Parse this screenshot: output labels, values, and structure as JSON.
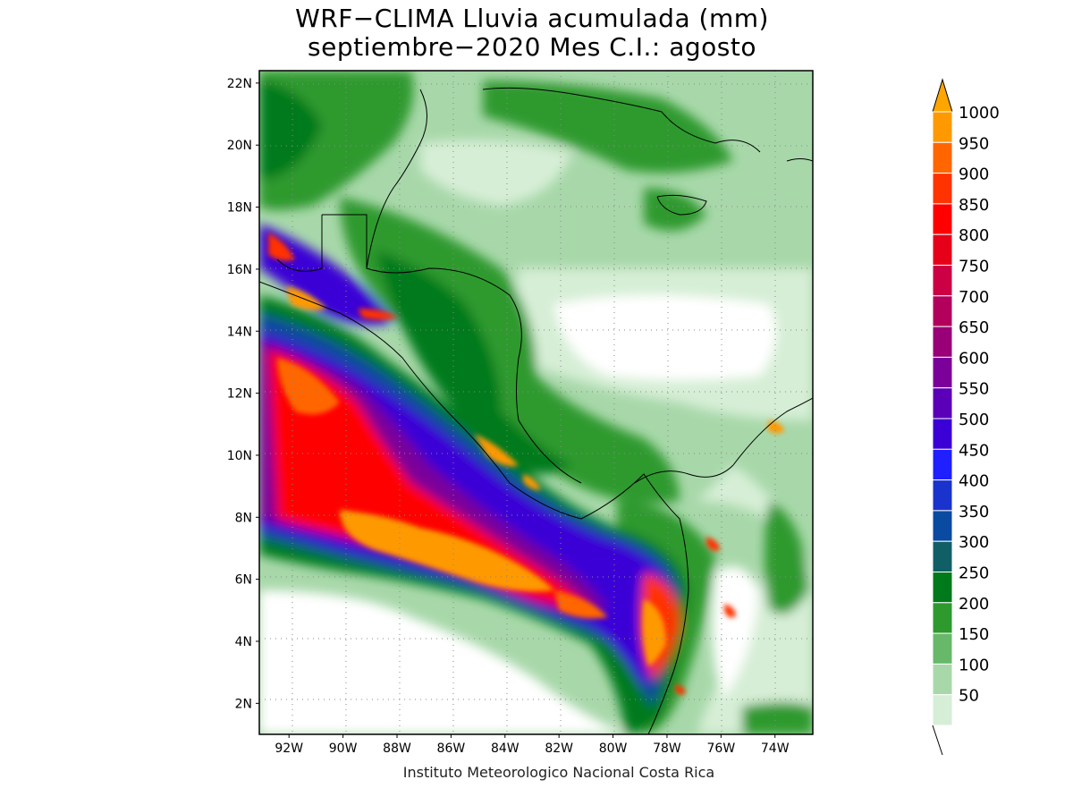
{
  "title": {
    "line1": "WRF−CLIMA Lluvia acumulada (mm)",
    "line2": "septiembre−2020 Mes C.I.: agosto"
  },
  "credit": "Instituto Meteorologico Nacional Costa Rica",
  "map": {
    "lat_ticks": [
      "22N",
      "20N",
      "18N",
      "16N",
      "14N",
      "12N",
      "10N",
      "8N",
      "6N",
      "4N",
      "2N"
    ],
    "lon_ticks": [
      "92W",
      "90W",
      "88W",
      "86W",
      "84W",
      "82W",
      "80W",
      "78W",
      "76W",
      "74W"
    ],
    "lat_values": [
      22,
      20,
      18,
      16,
      14,
      12,
      10,
      8,
      6,
      4,
      2
    ],
    "lon_values": [
      -92,
      -90,
      -88,
      -86,
      -84,
      -82,
      -80,
      -78,
      -76,
      -74
    ],
    "lat_range": [
      1,
      22.4
    ],
    "lon_range": [
      -93.1,
      -72.6
    ]
  },
  "colorbar": {
    "levels": [
      "1000",
      "950",
      "900",
      "850",
      "800",
      "750",
      "700",
      "650",
      "600",
      "550",
      "500",
      "450",
      "400",
      "350",
      "300",
      "250",
      "200",
      "150",
      "100",
      "50"
    ],
    "colors": [
      "#ff9900",
      "#ff6600",
      "#ff3300",
      "#ff0000",
      "#e6001a",
      "#cc0044",
      "#b3005c",
      "#990077",
      "#7a0099",
      "#5b00b8",
      "#3a00d6",
      "#1f1fff",
      "#1a33cc",
      "#0a4aa0",
      "#115f66",
      "#007a1a",
      "#2e9a2e",
      "#68b86a",
      "#a8d8aa",
      "#d6eed6"
    ],
    "arrow_color": "#ffa500"
  }
}
